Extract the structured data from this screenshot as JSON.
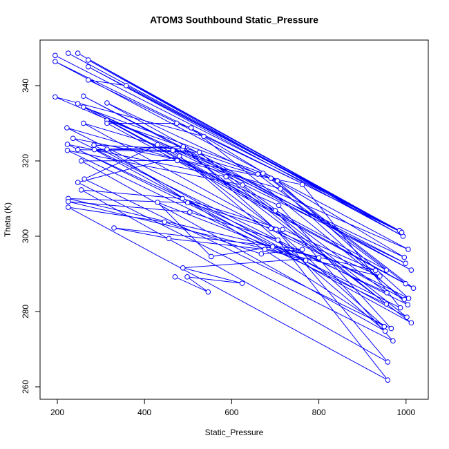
{
  "chart_data": {
    "type": "line",
    "markers": true,
    "title": "ATOM3 Southbound Static_Pressure",
    "xlabel": "Static_Pressure",
    "ylabel": "Theta (K)",
    "xlim": [
      160.4,
      1051
    ],
    "ylim": [
      256.7,
      352.1
    ],
    "xticks": [
      200,
      400,
      600,
      800,
      1000
    ],
    "yticks": [
      260,
      280,
      300,
      320,
      340
    ],
    "series": [
      {
        "color": "#0000ff",
        "x": [
          195,
          985,
          225,
          988,
          247,
          990,
          271,
          993,
          271,
          985,
          271,
          358,
          990,
          195,
          1005,
          195,
          536,
          996,
          247,
          999,
          260,
          1012,
          314,
          660,
          955,
          260,
          672,
          999,
          314,
          690,
          1017,
          314,
          474,
          507,
          996,
          260,
          705,
          1006,
          222,
          712,
          1004,
          236,
          762,
          987,
          223,
          587,
          955,
          223,
          625,
          956,
          247,
          526,
          1002,
          284,
          487,
          1012,
          285,
          489,
          950,
          314,
          465,
          952,
          255,
          475,
          708,
          966,
          262,
          430,
          700,
          970,
          247,
          480,
          702,
          958,
          255,
          487,
          717,
          930,
          225,
          499,
          690,
          940,
          225,
          504,
          706,
          958,
          225,
          446,
          668,
          762,
          330,
          456,
          676,
          770,
          430,
          553,
          694,
          800,
          488,
          624,
          498,
          546,
          470
        ],
        "values": [
          348,
          301.5,
          348.6,
          301.2,
          348.6,
          301,
          346.8,
          300,
          345,
          301.5,
          341.5,
          340,
          301,
          346.4,
          296.5,
          337,
          326.5,
          294.4,
          335.2,
          292.8,
          337.2,
          291,
          335.4,
          316.5,
          291,
          334.3,
          316.7,
          287.4,
          330.8,
          315.4,
          286.2,
          330,
          330,
          328.8,
          283.2,
          330,
          314.7,
          283.5,
          328.8,
          312.6,
          281.8,
          326,
          313.7,
          281,
          324.4,
          315.8,
          282,
          322.8,
          313.6,
          285,
          323,
          322.3,
          278.5,
          324.2,
          323.2,
          277,
          323,
          323.8,
          276,
          323.1,
          322.8,
          274.8,
          320,
          320.1,
          308.2,
          275.5,
          315.2,
          324.3,
          306.8,
          272.2,
          314.3,
          321.3,
          301.8,
          266.6,
          312.3,
          310,
          301.8,
          290.9,
          310,
          308.9,
          302.1,
          289.4,
          309.2,
          306.4,
          299,
          261.8,
          307.7,
          303.8,
          295.3,
          296.5,
          302.2,
          299.4,
          296.5,
          293.6,
          309,
          294.6,
          297.2,
          294.3,
          291.6,
          287.5,
          289.2,
          285.2,
          289.2
        ]
      }
    ]
  }
}
